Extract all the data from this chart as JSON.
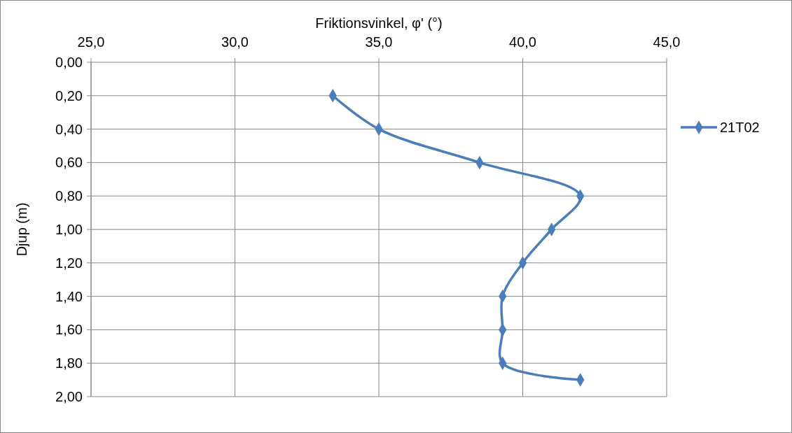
{
  "chart_data": {
    "type": "line",
    "xlabel": "Friktionsvinkel, φ' (°)",
    "ylabel": "Djup (m)",
    "x": [
      33.4,
      35.0,
      38.5,
      42.0,
      41.0,
      40.0,
      39.3,
      39.3,
      39.3,
      42.0
    ],
    "series": [
      {
        "name": "21T02",
        "color": "#4a7ebb",
        "values": [
          0.2,
          0.4,
          0.6,
          0.8,
          1.0,
          1.2,
          1.4,
          1.6,
          1.8,
          1.9
        ]
      }
    ],
    "xlim": [
      25,
      45
    ],
    "xticks": [
      {
        "value": 25,
        "label": "25,0"
      },
      {
        "value": 30,
        "label": "30,0"
      },
      {
        "value": 35,
        "label": "35,0"
      },
      {
        "value": 40,
        "label": "40,0"
      },
      {
        "value": 45,
        "label": "45,0"
      }
    ],
    "ylim": [
      2,
      0
    ],
    "yticks": [
      {
        "value": 0,
        "label": "0,00"
      },
      {
        "value": 0.2,
        "label": "0,20"
      },
      {
        "value": 0.4,
        "label": "0,40"
      },
      {
        "value": 0.6,
        "label": "0,60"
      },
      {
        "value": 0.8,
        "label": "0,80"
      },
      {
        "value": 1,
        "label": "1,00"
      },
      {
        "value": 1.2,
        "label": "1,20"
      },
      {
        "value": 1.4,
        "label": "1,40"
      },
      {
        "value": 1.6,
        "label": "1,60"
      },
      {
        "value": 1.8,
        "label": "1,80"
      },
      {
        "value": 2,
        "label": "2,00"
      }
    ],
    "grid": true,
    "legend": "right",
    "marker": "diamond",
    "line_style": "solid"
  }
}
